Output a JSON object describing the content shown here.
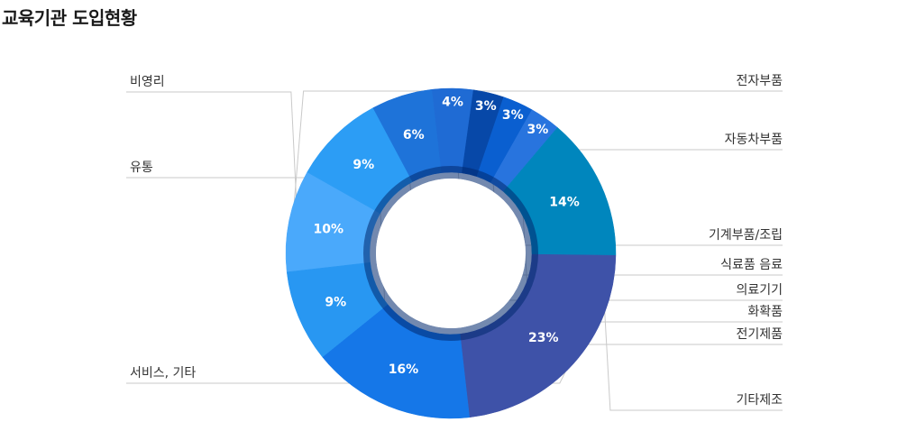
{
  "page": {
    "title": "교육기관 도입현황"
  },
  "chart_data": {
    "type": "pie",
    "title": "",
    "categories": [
      "전자부품",
      "자동차부품",
      "기계부품/조립",
      "식료품 음료",
      "의료기기",
      "화확품",
      "전기제품",
      "기타제조",
      "서비스, 기타",
      "유통",
      "비영리"
    ],
    "values": [
      10,
      9,
      6,
      4,
      3,
      3,
      3,
      14,
      23,
      16,
      9
    ],
    "value_labels": [
      "10%",
      "9%",
      "6%",
      "4%",
      "3%",
      "3%",
      "3%",
      "14%",
      "23%",
      "16%",
      "9%"
    ],
    "colors": [
      "#4aa9fb",
      "#2c9df5",
      "#1e73d9",
      "#1f6bd4",
      "#0748a8",
      "#0a5fd0",
      "#2874de",
      "#0086bd",
      "#3e52a8",
      "#1577e8",
      "#2897f2"
    ],
    "legend": "none"
  }
}
